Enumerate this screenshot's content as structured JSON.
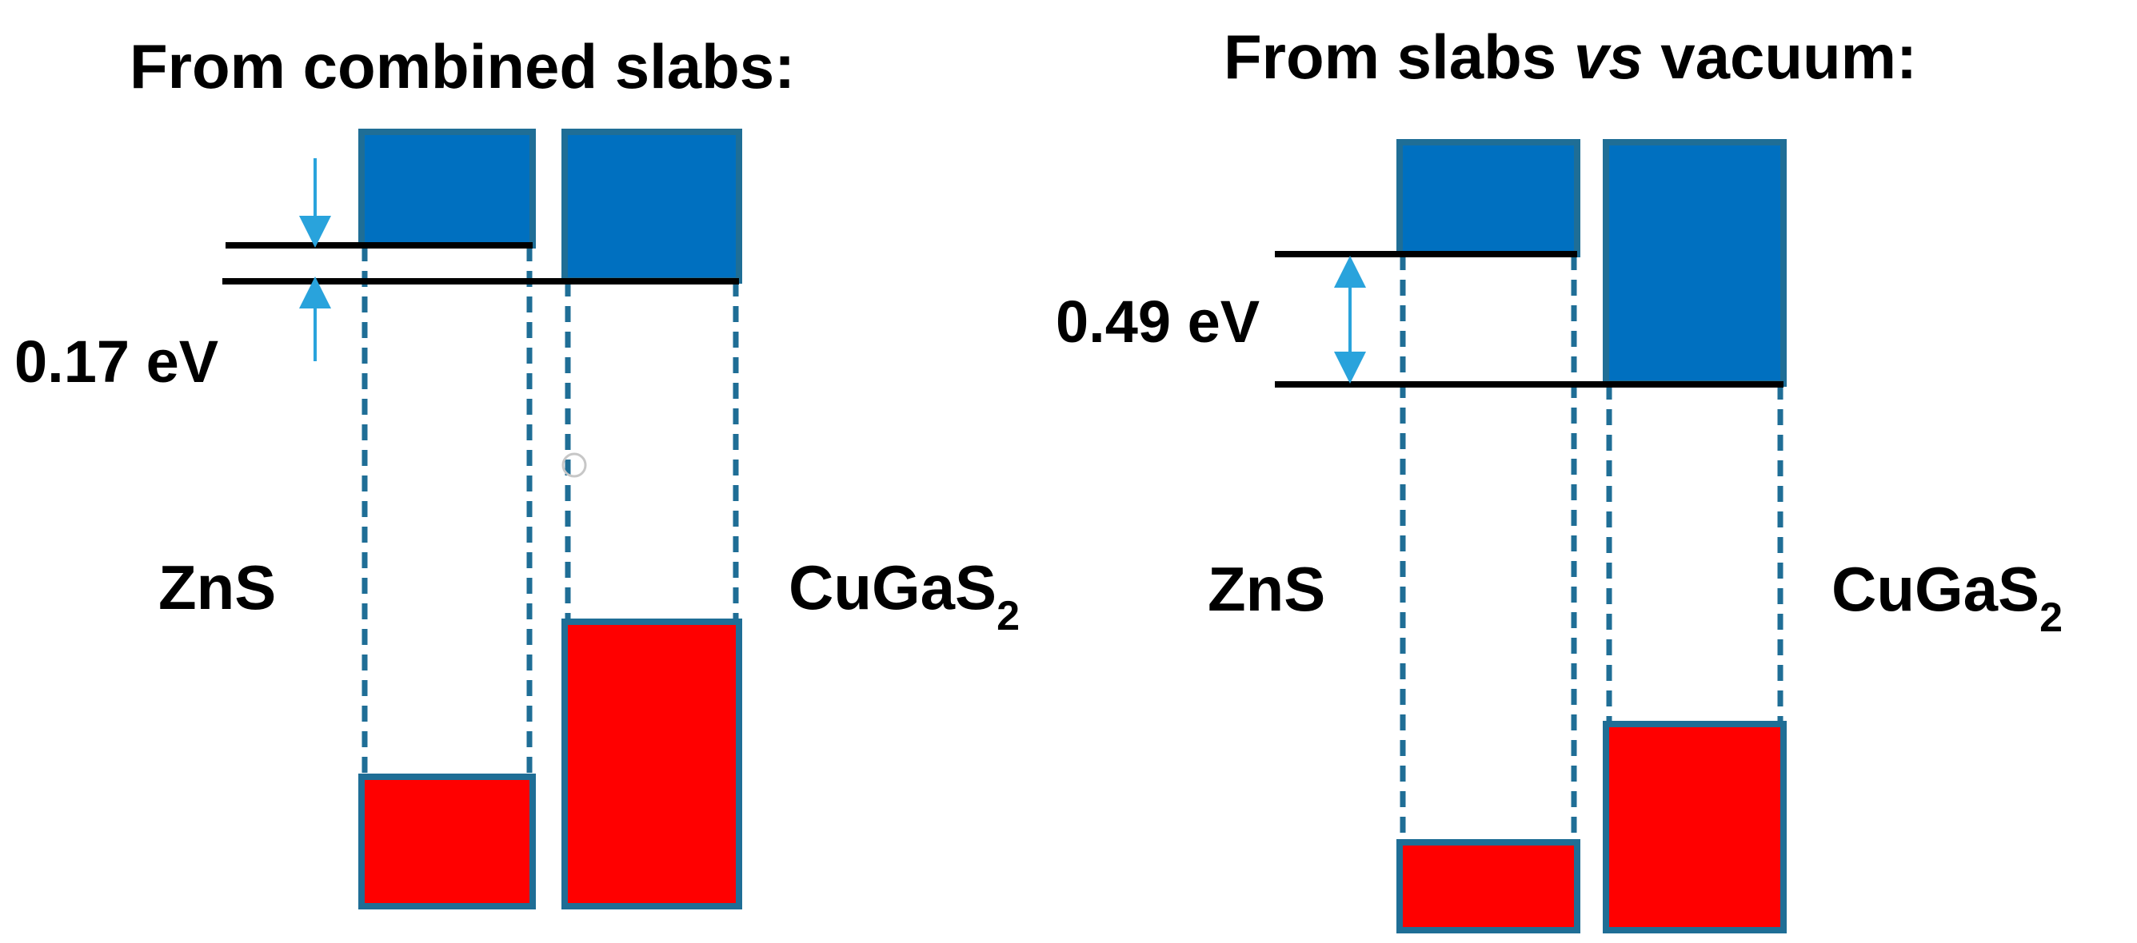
{
  "panels": [
    {
      "title": "From combined slabs:",
      "offset_label": "0.17 eV",
      "offset_ev": 0.17,
      "materials": [
        {
          "name": "ZnS",
          "subscript": ""
        },
        {
          "name": "CuGaS",
          "subscript": "2"
        }
      ]
    },
    {
      "title_pre": "From slabs ",
      "title_italic": "vs",
      "title_post": " vacuum:",
      "offset_label": "0.49 eV",
      "offset_ev": 0.49,
      "materials": [
        {
          "name": "ZnS",
          "subscript": ""
        },
        {
          "name": "CuGaS",
          "subscript": "2"
        }
      ]
    }
  ],
  "colors": {
    "conduction_band": "#0070c0",
    "valence_band": "#ff0000",
    "band_border": "#1f6e96",
    "arrow": "#29a3dc",
    "level_line": "#000000"
  }
}
